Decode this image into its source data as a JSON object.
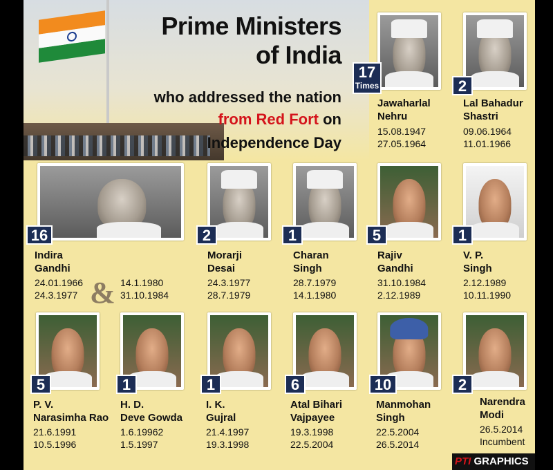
{
  "header": {
    "line1": "Prime Ministers",
    "line2": "of India",
    "line3": "who addressed the nation",
    "line4_red": "from Red Fort",
    "line4_rest": " on",
    "line5": "Independence Day"
  },
  "pms": [
    {
      "count": "17",
      "times": "Times",
      "first": "Jawaharlal",
      "last": "Nehru",
      "dates": [
        "15.08.1947",
        "27.05.1964"
      ]
    },
    {
      "count": "2",
      "first": "Lal Bahadur",
      "last": "Shastri",
      "dates": [
        "09.06.1964",
        "11.01.1966"
      ]
    },
    {
      "count": "16",
      "first": "Indira",
      "last": "Gandhi",
      "dates": [
        "24.01.1966",
        "24.3.1977"
      ],
      "dates2": [
        "14.1.1980",
        "31.10.1984"
      ]
    },
    {
      "count": "2",
      "first": "Morarji",
      "last": "Desai",
      "dates": [
        "24.3.1977",
        "28.7.1979"
      ]
    },
    {
      "count": "1",
      "first": "Charan",
      "last": "Singh",
      "dates": [
        "28.7.1979",
        "14.1.1980"
      ]
    },
    {
      "count": "5",
      "first": "Rajiv",
      "last": "Gandhi",
      "dates": [
        "31.10.1984",
        "2.12.1989"
      ]
    },
    {
      "count": "1",
      "first": "V. P.",
      "last": "Singh",
      "dates": [
        "2.12.1989",
        "10.11.1990"
      ]
    },
    {
      "count": "5",
      "first": "P. V.",
      "last": "Narasimha Rao",
      "dates": [
        "21.6.1991",
        "10.5.1996"
      ]
    },
    {
      "count": "1",
      "first": "H. D.",
      "last": "Deve Gowda",
      "dates": [
        "1.6.19962",
        "1.5.1997"
      ]
    },
    {
      "count": "1",
      "first": "I. K.",
      "last": "Gujral",
      "dates": [
        "21.4.1997",
        "19.3.1998"
      ]
    },
    {
      "count": "6",
      "first": "Atal Bihari",
      "last": "Vajpayee",
      "dates": [
        "19.3.1998",
        "22.5.2004"
      ]
    },
    {
      "count": "10",
      "first": "Manmohan",
      "last": "Singh",
      "dates": [
        "22.5.2004",
        "26.5.2014"
      ]
    },
    {
      "count": "2",
      "first": "Narendra",
      "last": "Modi",
      "dates": [
        "26.5.2014",
        "Incumbent"
      ]
    }
  ],
  "ampersand": "&",
  "footer": {
    "brand": "PTI",
    "label": "GRAPHICS"
  },
  "colors": {
    "background": "#f4e6a2",
    "badge": "#1c2d55",
    "accent_red": "#d4141b"
  }
}
